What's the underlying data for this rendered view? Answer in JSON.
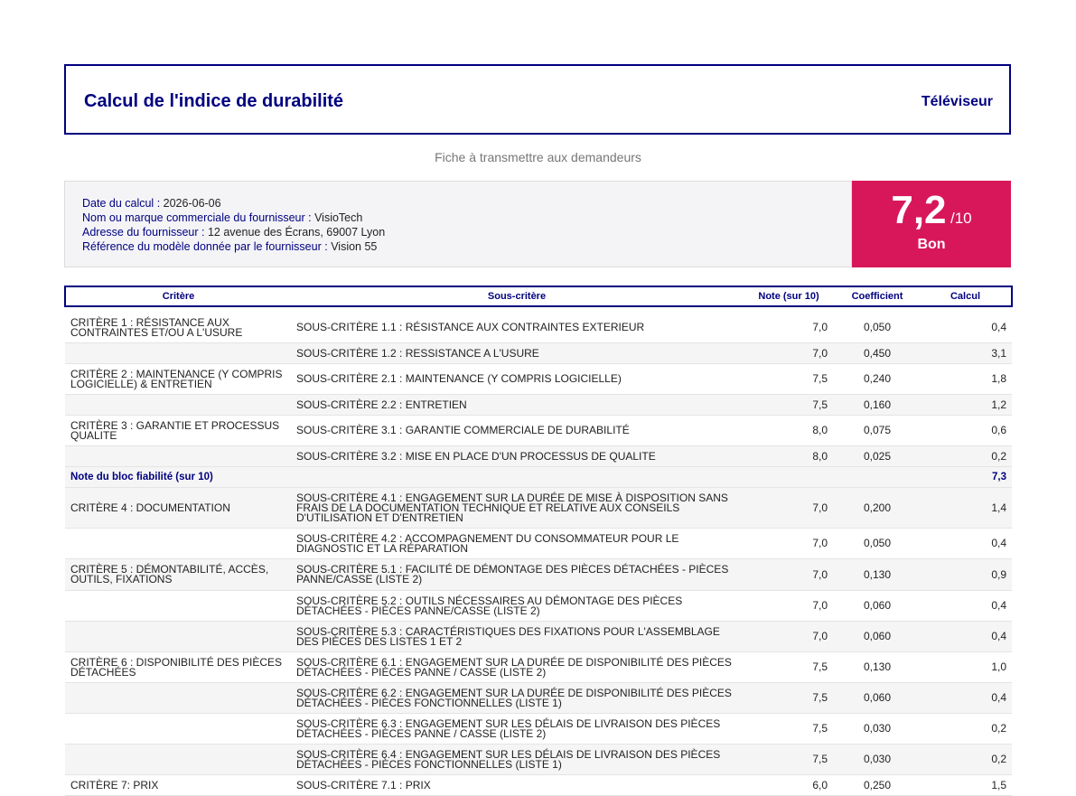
{
  "header": {
    "title": "Calcul de l'indice de durabilité",
    "product": "Téléviseur"
  },
  "subtitle": "Fiche à transmettre aux demandeurs",
  "info": {
    "date_label": "Date du calcul",
    "date_value": "2026-06-06",
    "supplier_label": "Nom ou marque commerciale du fournisseur",
    "supplier_value": "VisioTech",
    "address_label": "Adresse du fournisseur",
    "address_value": "12 avenue des Écrans, 69007 Lyon",
    "model_label": "Référence du modèle donnée par le fournisseur",
    "model_value": "Vision 55"
  },
  "score": {
    "value": "7,2",
    "max": "/10",
    "label": "Bon"
  },
  "colors": {
    "accent": "#000080",
    "score_bg": "#d8175a"
  },
  "table": {
    "headers": {
      "critere": "Critère",
      "sous_critere": "Sous-critère",
      "note": "Note (sur 10)",
      "coef": "Coefficient",
      "calcul": "Calcul"
    },
    "rows": [
      {
        "critere": "CRITÈRE 1 : RÉSISTANCE AUX CONTRAINTES ET/OU A L'USURE",
        "sous": "SOUS-CRITÈRE 1.1 : RÉSISTANCE AUX CONTRAINTES EXTERIEUR",
        "note": "7,0",
        "coef": "0,050",
        "calc": "0,4"
      },
      {
        "critere": "",
        "sous": "SOUS-CRITÈRE 1.2 : RESSISTANCE A L'USURE",
        "note": "7,0",
        "coef": "0,450",
        "calc": "3,1"
      },
      {
        "critere": "CRITÈRE 2 : MAINTENANCE (Y COMPRIS LOGICIELLE) & ENTRETIEN",
        "sous": "SOUS-CRITÈRE 2.1 : MAINTENANCE (Y COMPRIS LOGICIELLE)",
        "note": "7,5",
        "coef": "0,240",
        "calc": "1,8"
      },
      {
        "critere": "",
        "sous": "SOUS-CRITÈRE 2.2 : ENTRETIEN",
        "note": "7,5",
        "coef": "0,160",
        "calc": "1,2"
      },
      {
        "critere": "CRITÈRE 3 : GARANTIE ET PROCESSUS QUALITE",
        "sous": "SOUS-CRITÈRE 3.1 : GARANTIE COMMERCIALE DE DURABILITÉ",
        "note": "8,0",
        "coef": "0,075",
        "calc": "0,6"
      },
      {
        "critere": "",
        "sous": "SOUS-CRITÈRE 3.2 : MISE EN PLACE D'UN PROCESSUS DE QUALITE",
        "note": "8,0",
        "coef": "0,025",
        "calc": "0,2"
      }
    ],
    "bloc": {
      "label": "Note du bloc fiabilité (sur 10)",
      "value": "7,3"
    },
    "rows2": [
      {
        "critere": "CRITÈRE 4 : DOCUMENTATION",
        "sous": "SOUS-CRITÈRE 4.1 : ENGAGEMENT SUR LA DURÉE DE MISE À DISPOSITION SANS FRAIS DE LA DOCUMENTATION TECHNIQUE ET RELATIVE AUX CONSEILS D'UTILISATION ET D'ENTRETIEN",
        "note": "7,0",
        "coef": "0,200",
        "calc": "1,4"
      },
      {
        "critere": "",
        "sous": "SOUS-CRITÈRE 4.2 : ACCOMPAGNEMENT DU CONSOMMATEUR POUR LE DIAGNOSTIC ET LA RÉPARATION",
        "note": "7,0",
        "coef": "0,050",
        "calc": "0,4"
      },
      {
        "critere": "CRITÈRE 5 : DÉMONTABILITÉ, ACCÈS, OUTILS, FIXATIONS",
        "sous": "SOUS-CRITÈRE 5.1 : FACILITÉ DE DÉMONTAGE DES PIÈCES DÉTACHÉES - PIÈCES PANNE/CASSE (LISTE 2)",
        "note": "7,0",
        "coef": "0,130",
        "calc": "0,9"
      },
      {
        "critere": "",
        "sous": "SOUS-CRITÈRE 5.2 : OUTILS NÉCESSAIRES AU DÉMONTAGE DES PIÈCES DÉTACHÉES - PIÈCES PANNE/CASSE (LISTE 2)",
        "note": "7,0",
        "coef": "0,060",
        "calc": "0,4"
      },
      {
        "critere": "",
        "sous": "SOUS-CRITÈRE 5.3 : CARACTÉRISTIQUES DES FIXATIONS POUR L'ASSEMBLAGE DES PIÈCES DES LISTES 1 ET 2",
        "note": "7,0",
        "coef": "0,060",
        "calc": "0,4"
      },
      {
        "critere": "CRITÈRE 6 : DISPONIBILITÉ DES PIÈCES DÉTACHÉES",
        "sous": "SOUS-CRITÈRE 6.1 : ENGAGEMENT SUR LA DURÉE DE DISPONIBILITÉ DES PIÈCES DÉTACHÉES - PIÈCES PANNE / CASSE (LISTE 2)",
        "note": "7,5",
        "coef": "0,130",
        "calc": "1,0"
      },
      {
        "critere": "",
        "sous": "SOUS-CRITÈRE 6.2 : ENGAGEMENT SUR LA DURÉE DE DISPONIBILITÉ DES PIÈCES DÉTACHÉES - PIÈCES FONCTIONNELLES (LISTE 1)",
        "note": "7,5",
        "coef": "0,060",
        "calc": "0,4"
      },
      {
        "critere": "",
        "sous": "SOUS-CRITÈRE 6.3 : ENGAGEMENT SUR LES DÉLAIS DE LIVRAISON DES PIÈCES DÉTACHÉES - PIÈCES PANNE / CASSE (LISTE 2)",
        "note": "7,5",
        "coef": "0,030",
        "calc": "0,2"
      },
      {
        "critere": "",
        "sous": "SOUS-CRITÈRE 6.4 : ENGAGEMENT SUR LES DÉLAIS DE LIVRAISON DES PIÈCES DÉTACHÉES - PIÈCES FONCTIONNELLES (LISTE 1)",
        "note": "7,5",
        "coef": "0,030",
        "calc": "0,2"
      },
      {
        "critere": "CRITÈRE 7: PRIX",
        "sous": "SOUS-CRITÈRE 7.1 : PRIX",
        "note": "6,0",
        "coef": "0,250",
        "calc": "1,5"
      }
    ]
  }
}
